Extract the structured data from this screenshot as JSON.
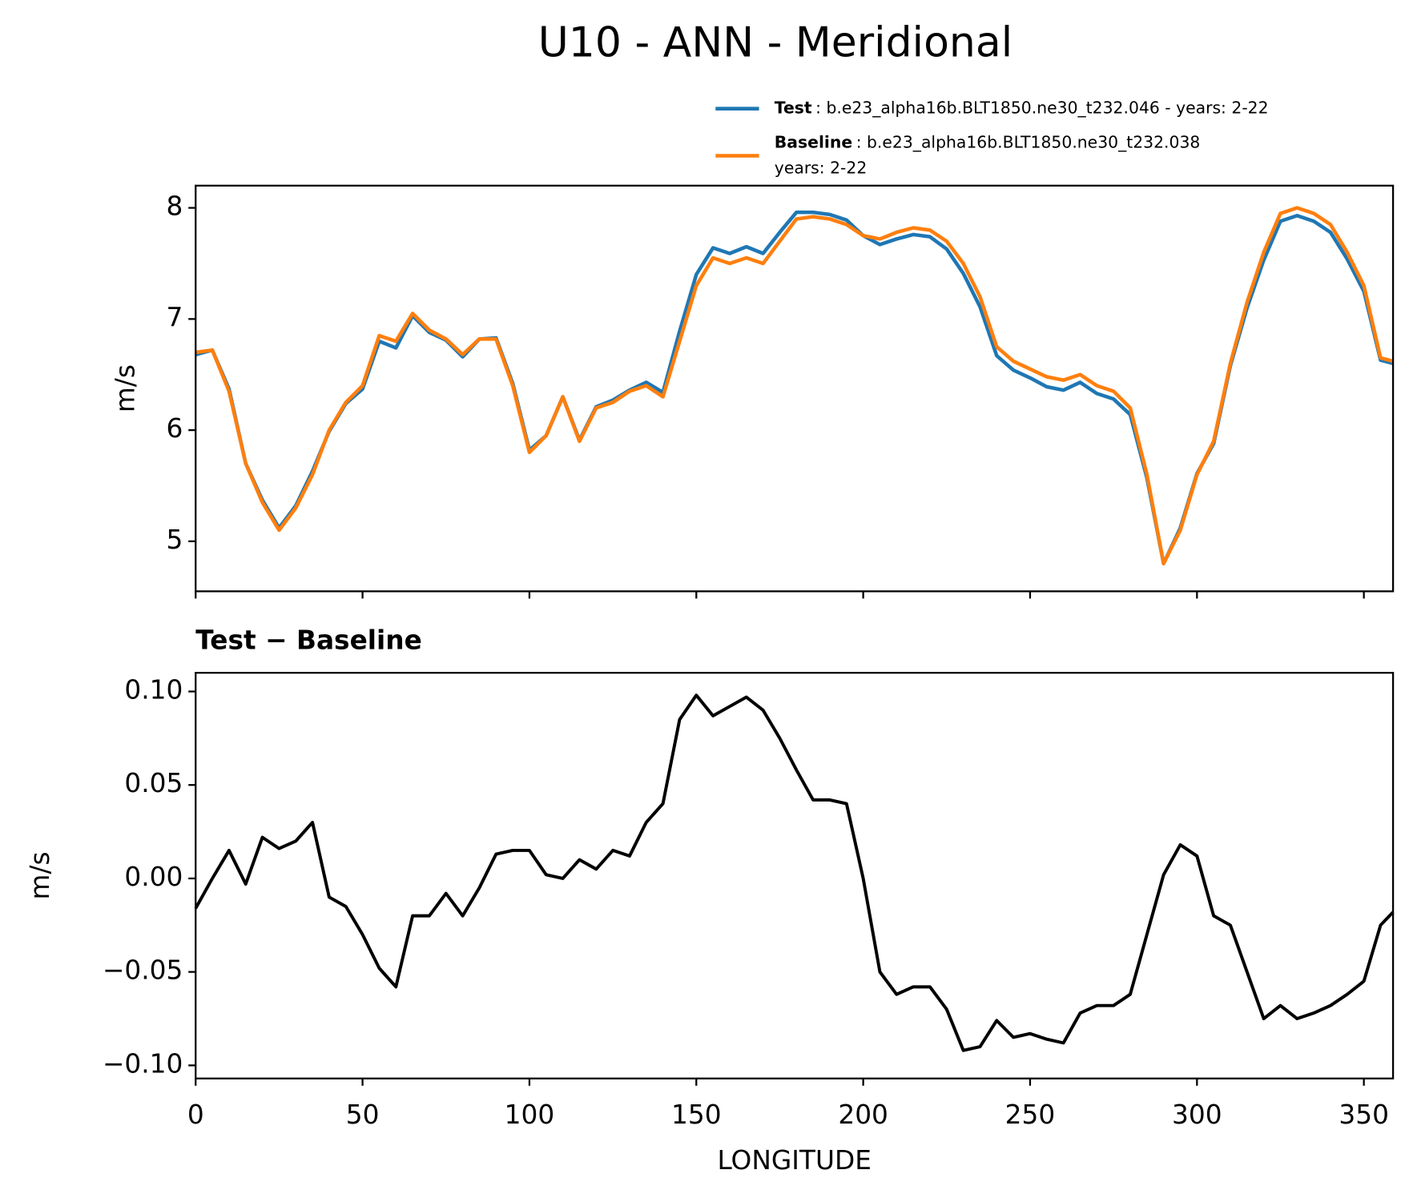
{
  "title": "U10 - ANN - Meridional",
  "chart_data": [
    {
      "type": "line",
      "ylabel": "m/s",
      "x": [
        0,
        5,
        10,
        15,
        20,
        25,
        30,
        35,
        40,
        45,
        50,
        55,
        60,
        65,
        70,
        75,
        80,
        85,
        90,
        95,
        100,
        105,
        110,
        115,
        120,
        125,
        130,
        135,
        140,
        145,
        150,
        155,
        160,
        165,
        170,
        175,
        180,
        185,
        190,
        195,
        200,
        205,
        210,
        215,
        220,
        225,
        230,
        235,
        240,
        245,
        250,
        255,
        260,
        265,
        270,
        275,
        280,
        285,
        290,
        295,
        300,
        305,
        310,
        315,
        320,
        325,
        330,
        335,
        340,
        345,
        350,
        355,
        358.75
      ],
      "series": [
        {
          "name": "Test",
          "label_lines": [
            ": b.e23_alpha16b.BLT1850.ne30_t232.046 - years: 2-22"
          ],
          "color": "#1f77b4",
          "values": [
            6.68,
            6.72,
            6.37,
            5.7,
            5.37,
            5.12,
            5.32,
            5.63,
            5.99,
            6.24,
            6.37,
            6.8,
            6.74,
            7.03,
            6.88,
            6.81,
            6.66,
            6.82,
            6.83,
            6.42,
            5.82,
            5.95,
            6.3,
            5.91,
            6.21,
            6.27,
            6.36,
            6.43,
            6.34,
            6.89,
            7.4,
            7.64,
            7.59,
            7.65,
            7.59,
            7.78,
            7.96,
            7.96,
            7.94,
            7.89,
            7.75,
            7.67,
            7.72,
            7.76,
            7.74,
            7.63,
            7.41,
            7.11,
            6.67,
            6.54,
            6.47,
            6.39,
            6.36,
            6.43,
            6.33,
            6.28,
            6.14,
            5.57,
            4.8,
            5.12,
            5.61,
            5.88,
            6.58,
            7.1,
            7.53,
            7.88,
            7.93,
            7.88,
            7.78,
            7.54,
            7.25,
            6.63,
            6.6
          ]
        },
        {
          "name": "Baseline",
          "label_lines": [
            ": b.e23_alpha16b.BLT1850.ne30_t232.038",
            "years: 2-22"
          ],
          "color": "#ff7f0e",
          "values": [
            6.7,
            6.72,
            6.35,
            5.7,
            5.35,
            5.1,
            5.3,
            5.6,
            6.0,
            6.25,
            6.4,
            6.85,
            6.8,
            7.05,
            6.9,
            6.82,
            6.68,
            6.82,
            6.82,
            6.4,
            5.8,
            5.95,
            6.3,
            5.9,
            6.2,
            6.25,
            6.35,
            6.4,
            6.3,
            6.8,
            7.3,
            7.55,
            7.5,
            7.55,
            7.5,
            7.7,
            7.9,
            7.92,
            7.9,
            7.85,
            7.75,
            7.72,
            7.78,
            7.82,
            7.8,
            7.7,
            7.5,
            7.2,
            6.75,
            6.62,
            6.55,
            6.48,
            6.45,
            6.5,
            6.4,
            6.35,
            6.2,
            5.6,
            4.8,
            5.1,
            5.6,
            5.9,
            6.6,
            7.15,
            7.6,
            7.95,
            8.0,
            7.95,
            7.85,
            7.6,
            7.3,
            6.65,
            6.62
          ]
        }
      ],
      "xlim": [
        0,
        358.75
      ],
      "xticks": [
        0,
        50,
        100,
        150,
        200,
        250,
        300,
        350
      ],
      "ylim": [
        4.55,
        8.2
      ],
      "yticks": [
        5,
        6,
        7,
        8
      ]
    },
    {
      "type": "line",
      "title": "Test − Baseline",
      "xlabel": "LONGITUDE",
      "ylabel": "m/s",
      "x": [
        0,
        5,
        10,
        15,
        20,
        25,
        30,
        35,
        40,
        45,
        50,
        55,
        60,
        65,
        70,
        75,
        80,
        85,
        90,
        95,
        100,
        105,
        110,
        115,
        120,
        125,
        130,
        135,
        140,
        145,
        150,
        155,
        160,
        165,
        170,
        175,
        180,
        185,
        190,
        195,
        200,
        205,
        210,
        215,
        220,
        225,
        230,
        235,
        240,
        245,
        250,
        255,
        260,
        265,
        270,
        275,
        280,
        285,
        290,
        295,
        300,
        305,
        310,
        315,
        320,
        325,
        330,
        335,
        340,
        345,
        350,
        355,
        358.75
      ],
      "series": [
        {
          "color": "#000000",
          "values": [
            -0.016,
            0.0,
            0.015,
            -0.003,
            0.022,
            0.016,
            0.02,
            0.03,
            -0.01,
            -0.015,
            -0.03,
            -0.048,
            -0.058,
            -0.02,
            -0.02,
            -0.008,
            -0.02,
            -0.005,
            0.013,
            0.015,
            0.015,
            0.002,
            0.0,
            0.01,
            0.005,
            0.015,
            0.012,
            0.03,
            0.04,
            0.085,
            0.098,
            0.087,
            0.092,
            0.097,
            0.09,
            0.075,
            0.058,
            0.042,
            0.042,
            0.04,
            0.0,
            -0.05,
            -0.062,
            -0.058,
            -0.058,
            -0.07,
            -0.092,
            -0.09,
            -0.076,
            -0.085,
            -0.083,
            -0.086,
            -0.088,
            -0.072,
            -0.068,
            -0.068,
            -0.062,
            -0.03,
            0.002,
            0.018,
            0.012,
            -0.02,
            -0.025,
            -0.05,
            -0.075,
            -0.068,
            -0.075,
            -0.072,
            -0.068,
            -0.062,
            -0.055,
            -0.025,
            -0.018
          ]
        }
      ],
      "xlim": [
        0,
        358.75
      ],
      "xticks": [
        0,
        50,
        100,
        150,
        200,
        250,
        300,
        350
      ],
      "ylim": [
        -0.107,
        0.11
      ],
      "yticks": [
        {
          "value": -0.1,
          "label": "−0.10"
        },
        {
          "value": -0.05,
          "label": "−0.05"
        },
        {
          "value": 0,
          "label": "0.00"
        },
        {
          "value": 0.05,
          "label": "0.05"
        },
        {
          "value": 0.1,
          "label": "0.10"
        }
      ]
    }
  ]
}
